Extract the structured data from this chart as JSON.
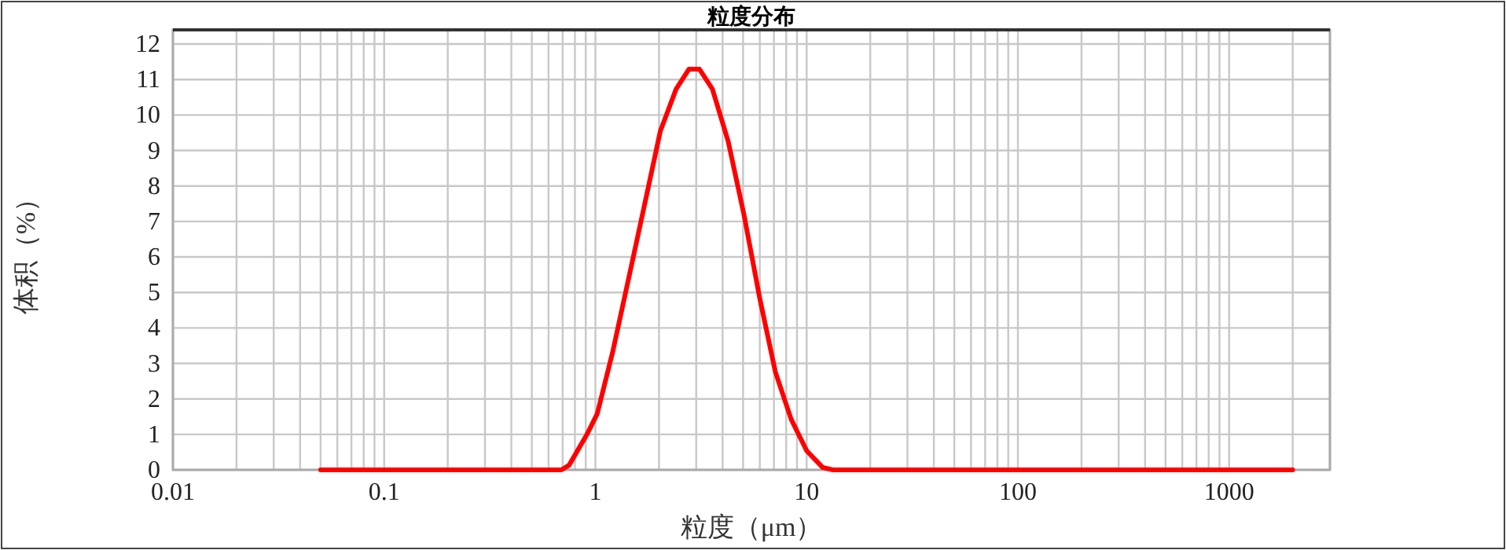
{
  "chart_data": {
    "type": "line",
    "title": "粒度分布",
    "xlabel": "粒度（μm）",
    "ylabel": "体积（%）",
    "log": "x",
    "grid": true,
    "xlim": [
      0.01,
      3000
    ],
    "xticks": [
      0.01,
      0.1,
      1,
      10,
      100,
      1000
    ],
    "ylim": [
      0,
      12.4
    ],
    "yticks": [
      0,
      1,
      2,
      3,
      4,
      5,
      6,
      7,
      8,
      9,
      10,
      11,
      12
    ],
    "x": [
      0.05,
      0.69,
      0.75,
      0.91,
      1.02,
      1.21,
      1.44,
      1.71,
      2.03,
      2.41,
      2.77,
      3.11,
      3.58,
      4.25,
      5.05,
      6.0,
      7.11,
      8.44,
      10.0,
      11.9,
      13.3,
      2000
    ],
    "series": [
      {
        "color": "#ff0000",
        "values": [
          0,
          0,
          0.13,
          0.99,
          1.58,
          3.35,
          5.42,
          7.48,
          9.55,
          10.73,
          11.29,
          11.29,
          10.73,
          9.26,
          7.19,
          4.83,
          2.76,
          1.43,
          0.54,
          0.07,
          0,
          0
        ]
      }
    ],
    "marker": "none",
    "line_style": "solid"
  }
}
